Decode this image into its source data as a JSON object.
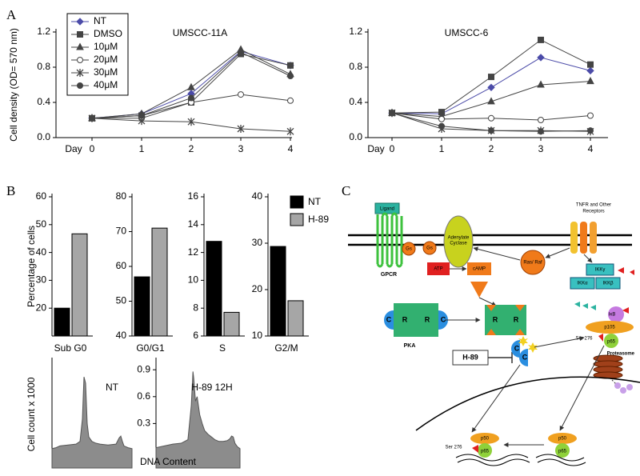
{
  "panel_labels": [
    "A",
    "B",
    "C"
  ],
  "chart_data": [
    {
      "type": "line",
      "title": "UMSCC-11A",
      "ylabel": "Cell density (OD= 570 nm)",
      "xlabel": "Day",
      "categories": [
        "0",
        "1",
        "2",
        "3",
        "4"
      ],
      "ylim": [
        0,
        1.2
      ],
      "yticks": [
        {
          "value": 0,
          "label": "0.0"
        },
        0.4,
        0.8,
        1.2
      ],
      "legend": "upper left",
      "series": [
        {
          "name": "NT",
          "color": "#4b4ba8",
          "marker": "diamond",
          "values": [
            0.22,
            0.27,
            0.5,
            0.98,
            0.82
          ]
        },
        {
          "name": "DMSO",
          "color": "#444444",
          "marker": "square",
          "values": [
            0.22,
            0.25,
            0.4,
            0.95,
            0.82
          ]
        },
        {
          "name": "10μM",
          "color": "#444444",
          "marker": "triangle",
          "values": [
            0.22,
            0.27,
            0.57,
            1.0,
            0.72
          ]
        },
        {
          "name": "20μM",
          "color": "#444444",
          "marker": "circle-open",
          "values": [
            0.22,
            0.22,
            0.4,
            0.49,
            0.42
          ]
        },
        {
          "name": "30μM",
          "color": "#444444",
          "marker": "star",
          "values": [
            0.22,
            0.19,
            0.18,
            0.1,
            0.07
          ]
        },
        {
          "name": "40μM",
          "color": "#444444",
          "marker": "circle",
          "values": [
            0.22,
            0.25,
            0.45,
            0.97,
            0.7
          ]
        }
      ]
    },
    {
      "type": "line",
      "title": "UMSCC-6",
      "xlabel": "Day",
      "categories": [
        "0",
        "1",
        "2",
        "3",
        "4"
      ],
      "ylim": [
        0,
        1.2
      ],
      "yticks": [
        {
          "value": 0,
          "label": "0.0"
        },
        0.4,
        0.8,
        1.2
      ],
      "series": [
        {
          "name": "NT",
          "color": "#4b4ba8",
          "marker": "diamond",
          "values": [
            0.28,
            0.27,
            0.57,
            0.91,
            0.76
          ]
        },
        {
          "name": "DMSO",
          "color": "#444444",
          "marker": "square",
          "values": [
            0.28,
            0.29,
            0.69,
            1.11,
            0.83
          ]
        },
        {
          "name": "10μM",
          "color": "#444444",
          "marker": "triangle",
          "values": [
            0.28,
            0.24,
            0.41,
            0.6,
            0.64
          ]
        },
        {
          "name": "20μM",
          "color": "#444444",
          "marker": "circle-open",
          "values": [
            0.28,
            0.21,
            0.22,
            0.2,
            0.25
          ]
        },
        {
          "name": "30μM",
          "color": "#444444",
          "marker": "star",
          "values": [
            0.28,
            0.1,
            0.08,
            0.08,
            0.07
          ]
        },
        {
          "name": "40μM",
          "color": "#444444",
          "marker": "circle",
          "values": [
            0.28,
            0.13,
            0.08,
            0.07,
            0.08
          ]
        }
      ]
    },
    {
      "type": "bar",
      "ylabel": "Percentage of cells",
      "categories": [
        "Sub G0"
      ],
      "ylim": [
        10,
        60
      ],
      "yticks": [
        20,
        30,
        40,
        50,
        60
      ],
      "series": [
        {
          "name": "NT",
          "color": "#000000",
          "values": [
            20
          ]
        },
        {
          "name": "H-89",
          "color": "#a6a6a6",
          "values": [
            46.7
          ]
        }
      ]
    },
    {
      "type": "bar",
      "categories": [
        "G0/G1"
      ],
      "ylim": [
        40,
        80
      ],
      "yticks": [
        40,
        50,
        60,
        70,
        80
      ],
      "series": [
        {
          "name": "NT",
          "color": "#000000",
          "values": [
            57
          ]
        },
        {
          "name": "H-89",
          "color": "#a6a6a6",
          "values": [
            71
          ]
        }
      ]
    },
    {
      "type": "bar",
      "categories": [
        "S"
      ],
      "ylim": [
        6,
        16
      ],
      "yticks": [
        6,
        8,
        10,
        12,
        14,
        16
      ],
      "series": [
        {
          "name": "NT",
          "color": "#000000",
          "values": [
            12.8
          ]
        },
        {
          "name": "H-89",
          "color": "#a6a6a6",
          "values": [
            7.7
          ]
        }
      ]
    },
    {
      "type": "bar",
      "categories": [
        "G2/M"
      ],
      "ylim": [
        10,
        40
      ],
      "yticks": [
        10,
        20,
        30,
        40
      ],
      "legend": "right",
      "series": [
        {
          "name": "NT",
          "color": "#000000",
          "values": [
            29.3
          ]
        },
        {
          "name": "H-89",
          "color": "#a6a6a6",
          "values": [
            17.6
          ]
        }
      ]
    },
    {
      "type": "area",
      "annotation": "NT",
      "ylabel": "Cell count x 1000",
      "color": "#8c8c8c",
      "xlim": [
        0,
        100
      ],
      "ylim": [
        0,
        1
      ],
      "x": [
        0,
        5,
        10,
        20,
        30,
        35,
        38,
        40,
        42,
        44,
        46,
        50,
        55,
        60,
        70,
        80,
        84,
        86,
        88,
        90,
        95,
        100
      ],
      "values": [
        0.02,
        0.03,
        0.05,
        0.06,
        0.07,
        0.1,
        0.35,
        0.82,
        0.75,
        0.3,
        0.15,
        0.1,
        0.08,
        0.07,
        0.06,
        0.07,
        0.14,
        0.16,
        0.1,
        0.05,
        0.03,
        0.02
      ]
    },
    {
      "type": "area",
      "annotation": "H-89 12H",
      "xlabel": "DNA Content",
      "color": "#8c8c8c",
      "xlim": [
        0,
        100
      ],
      "ylim": [
        0,
        1
      ],
      "yticks": [
        0.3,
        0.6,
        0.9
      ],
      "x": [
        0,
        5,
        10,
        20,
        30,
        38,
        42,
        44,
        45,
        47,
        49,
        52,
        55,
        58,
        62,
        66,
        70,
        75,
        80,
        85,
        88,
        90,
        92,
        94,
        97,
        100
      ],
      "values": [
        0.03,
        0.04,
        0.05,
        0.07,
        0.08,
        0.12,
        0.5,
        0.88,
        0.8,
        0.55,
        0.6,
        0.4,
        0.3,
        0.22,
        0.18,
        0.15,
        0.12,
        0.1,
        0.1,
        0.11,
        0.13,
        0.16,
        0.15,
        0.08,
        0.04,
        0.02
      ]
    }
  ],
  "diagram": {
    "ligand": "Ligand",
    "gpcr": "GPCR",
    "gs": [
      "Gs",
      "Gs"
    ],
    "adenylate_cyclase": [
      "Adenylate",
      "Cyclase"
    ],
    "atp": "ATP",
    "camp": "cAMP",
    "ras_raf": "Ras/ Raf",
    "tnfr": [
      "TNFR and Other",
      "Receptors"
    ],
    "ikk_gamma": "IKKγ",
    "ikk_alpha": "IKKα",
    "ikk_beta": "IKKβ",
    "ikb": "IκB",
    "p105": "p105",
    "p65": [
      "p65",
      "p65",
      "p65"
    ],
    "p50": [
      "p50",
      "p50"
    ],
    "ser276": [
      "Ser 276",
      "Ser 276"
    ],
    "proteasome": "Proteasome",
    "pka": "PKA",
    "r": [
      "R",
      "R",
      "R",
      "R"
    ],
    "c": [
      "C",
      "C",
      "C",
      "C"
    ],
    "h89": "H-89"
  }
}
